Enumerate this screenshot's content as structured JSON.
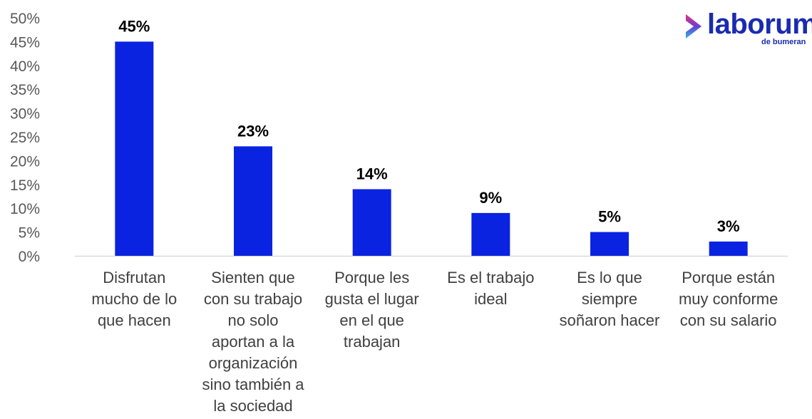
{
  "chart_data": {
    "type": "bar",
    "categories": [
      [
        "Disfrutan",
        "mucho de lo",
        "que hacen"
      ],
      [
        "Sienten que",
        "con su trabajo",
        "no solo",
        "aportan a la",
        "organización",
        "sino también a",
        "la sociedad"
      ],
      [
        "Porque les",
        "gusta el lugar",
        "en el que",
        "trabajan"
      ],
      [
        "Es el trabajo",
        "ideal"
      ],
      [
        "Es lo que",
        "siempre",
        "soñaron hacer"
      ],
      [
        "Porque están",
        "muy conforme",
        "con su salario"
      ]
    ],
    "values": [
      45,
      23,
      14,
      9,
      5,
      3
    ],
    "data_labels": [
      "45%",
      "23%",
      "14%",
      "9%",
      "5%",
      "3%"
    ],
    "y_ticks": [
      "0%",
      "5%",
      "10%",
      "15%",
      "20%",
      "25%",
      "30%",
      "35%",
      "40%",
      "45%",
      "50%"
    ],
    "ylim": [
      0,
      50
    ],
    "title": "",
    "xlabel": "",
    "ylabel": "",
    "grid": false,
    "bar_color": "#0a23e0",
    "axis_color": "#d9d9d9"
  },
  "logo": {
    "name": "laborum",
    "tagline": "de bumeran",
    "colors": {
      "text": "#1a2bb0",
      "mark_top": "#e8317a",
      "mark_bottom": "#2fb5f0"
    }
  }
}
